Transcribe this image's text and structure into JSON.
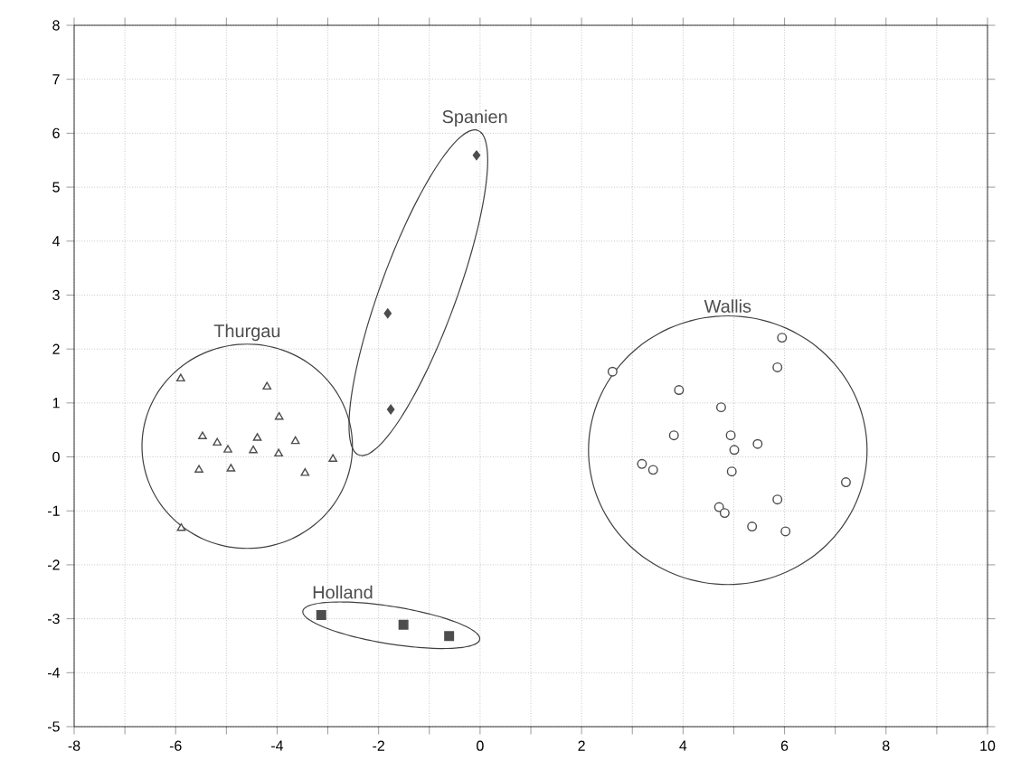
{
  "chart_data": {
    "type": "scatter",
    "xlim": [
      -8,
      10
    ],
    "ylim": [
      -5,
      8
    ],
    "xticks": [
      -8,
      {
        "value": -7,
        "label": null
      },
      -6,
      {
        "value": -5,
        "label": null
      },
      -4,
      {
        "value": -3,
        "label": null
      },
      -2,
      {
        "value": -1,
        "label": null
      },
      0,
      {
        "value": 1,
        "label": null
      },
      2,
      {
        "value": 3,
        "label": null
      },
      4,
      {
        "value": 5,
        "label": null
      },
      6,
      {
        "value": 7,
        "label": null
      },
      8,
      {
        "value": 9,
        "label": null
      },
      10
    ],
    "yticks": [
      -5,
      -4,
      -3,
      -2,
      -1,
      0,
      1,
      2,
      3,
      4,
      5,
      6,
      7,
      8
    ],
    "grid": true,
    "legend": false,
    "series": [
      {
        "name": "Thurgau",
        "color": "#4d4d4d",
        "marker": "triangle",
        "x": [
          -5.9,
          -4.2,
          -3.96,
          -5.47,
          -5.18,
          -4.97,
          -4.91,
          -5.54,
          -4.39,
          -4.47,
          -3.97,
          -3.64,
          -3.45,
          -2.9,
          -5.89
        ],
        "values": [
          1.45,
          1.3,
          0.74,
          0.38,
          0.26,
          0.13,
          -0.22,
          -0.24,
          0.35,
          0.12,
          0.06,
          0.29,
          -0.3,
          -0.04,
          -1.32
        ]
      },
      {
        "name": "Spanien",
        "color": "#4d4d4d",
        "marker": "diamond",
        "x": [
          -0.07,
          -1.82,
          -1.76
        ],
        "values": [
          5.59,
          2.66,
          0.88
        ]
      },
      {
        "name": "Wallis",
        "color": "#4d4d4d",
        "marker": "circle",
        "x": [
          2.61,
          5.95,
          5.86,
          3.92,
          4.75,
          3.82,
          4.94,
          5.01,
          5.47,
          3.19,
          3.41,
          4.96,
          7.21,
          5.86,
          4.71,
          4.82,
          5.36,
          6.02
        ],
        "values": [
          1.58,
          2.21,
          1.66,
          1.24,
          0.92,
          0.4,
          0.4,
          0.13,
          0.24,
          -0.13,
          -0.24,
          -0.27,
          -0.47,
          -0.79,
          -0.93,
          -1.04,
          -1.29,
          -1.38
        ]
      },
      {
        "name": "Holland",
        "color": "#4d4d4d",
        "marker": "square",
        "x": [
          -3.13,
          -1.51,
          -0.61
        ],
        "values": [
          -2.93,
          -3.11,
          -3.32
        ]
      }
    ]
  }
}
